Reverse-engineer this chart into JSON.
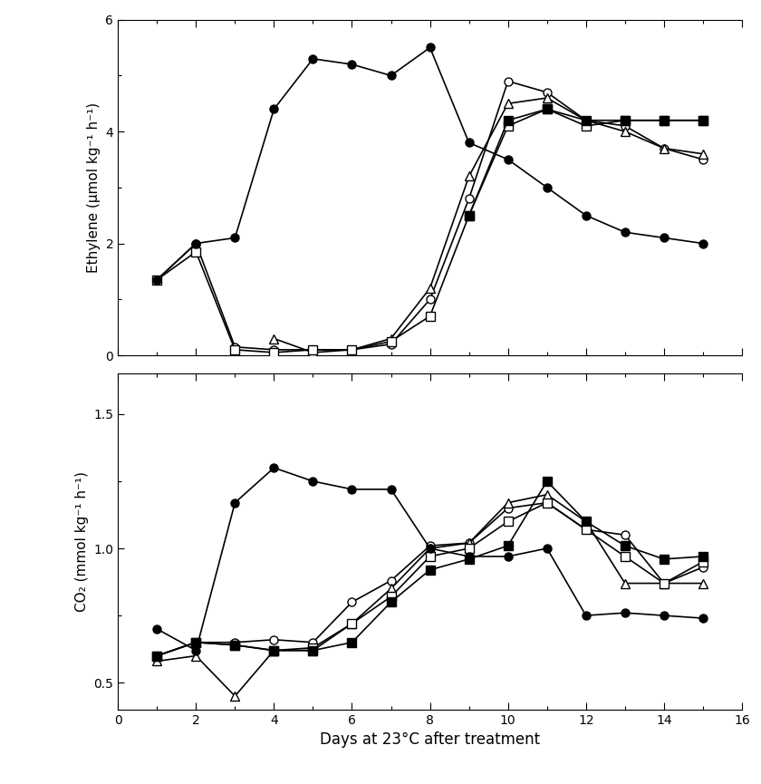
{
  "x_days": [
    1,
    2,
    3,
    4,
    5,
    6,
    7,
    8,
    9,
    10,
    11,
    12,
    13,
    14,
    15
  ],
  "ethylene_filled_circle": [
    1.35,
    2.0,
    2.1,
    4.4,
    5.3,
    5.2,
    5.0,
    5.5,
    3.8,
    3.5,
    3.0,
    2.5,
    2.2,
    2.1,
    2.0
  ],
  "ethylene_open_circle": [
    1.35,
    2.0,
    0.15,
    0.1,
    0.1,
    0.1,
    0.2,
    1.0,
    2.8,
    4.9,
    4.7,
    4.2,
    4.1,
    3.7,
    3.5
  ],
  "ethylene_open_triangle": [
    null,
    null,
    null,
    0.3,
    0.05,
    0.1,
    0.3,
    1.2,
    3.2,
    4.5,
    4.6,
    4.2,
    4.0,
    3.7,
    3.6
  ],
  "ethylene_open_square": [
    1.35,
    1.85,
    0.1,
    0.05,
    0.1,
    0.1,
    0.25,
    0.7,
    2.5,
    4.1,
    4.4,
    4.1,
    4.2,
    4.2,
    4.2
  ],
  "ethylene_filled_square": [
    null,
    null,
    null,
    null,
    null,
    null,
    null,
    null,
    2.5,
    4.2,
    4.4,
    4.2,
    4.2,
    4.2,
    4.2
  ],
  "co2_filled_circle": [
    0.7,
    0.62,
    1.17,
    1.3,
    1.25,
    1.22,
    1.22,
    1.0,
    0.97,
    0.97,
    1.0,
    0.75,
    0.76,
    0.75,
    0.74
  ],
  "co2_open_circle": [
    0.6,
    0.65,
    0.65,
    0.66,
    0.65,
    0.8,
    0.88,
    1.01,
    1.02,
    1.15,
    1.17,
    1.07,
    1.05,
    0.87,
    0.93
  ],
  "co2_open_triangle": [
    0.58,
    0.6,
    0.45,
    0.62,
    0.62,
    0.72,
    0.85,
    1.0,
    1.02,
    1.17,
    1.2,
    1.1,
    0.87,
    0.87,
    0.87
  ],
  "co2_open_square": [
    0.6,
    0.65,
    0.64,
    0.62,
    0.63,
    0.72,
    0.82,
    0.97,
    1.0,
    1.1,
    1.17,
    1.07,
    0.97,
    0.87,
    0.95
  ],
  "co2_filled_square": [
    0.6,
    0.65,
    0.64,
    0.62,
    0.62,
    0.65,
    0.8,
    0.92,
    0.96,
    1.01,
    1.25,
    1.1,
    1.01,
    0.96,
    0.97
  ],
  "ethylene_ylim": [
    0,
    6
  ],
  "ethylene_yticks": [
    0,
    2,
    4,
    6
  ],
  "co2_ylim": [
    0.4,
    1.65
  ],
  "co2_yticks": [
    0.5,
    1.0,
    1.5
  ],
  "xlim": [
    0,
    16
  ],
  "xticks": [
    0,
    2,
    4,
    6,
    8,
    10,
    12,
    14,
    16
  ],
  "ylabel_ethylene": "Ethylene (μmol kg⁻¹ h⁻¹)",
  "ylabel_co2": "CO₂ (mmol kg⁻¹ h⁻¹)",
  "xlabel": "Days at 23°C after treatment",
  "background_color": "#ffffff",
  "fig_width": 8.4,
  "fig_height": 8.65,
  "dpi": 100
}
